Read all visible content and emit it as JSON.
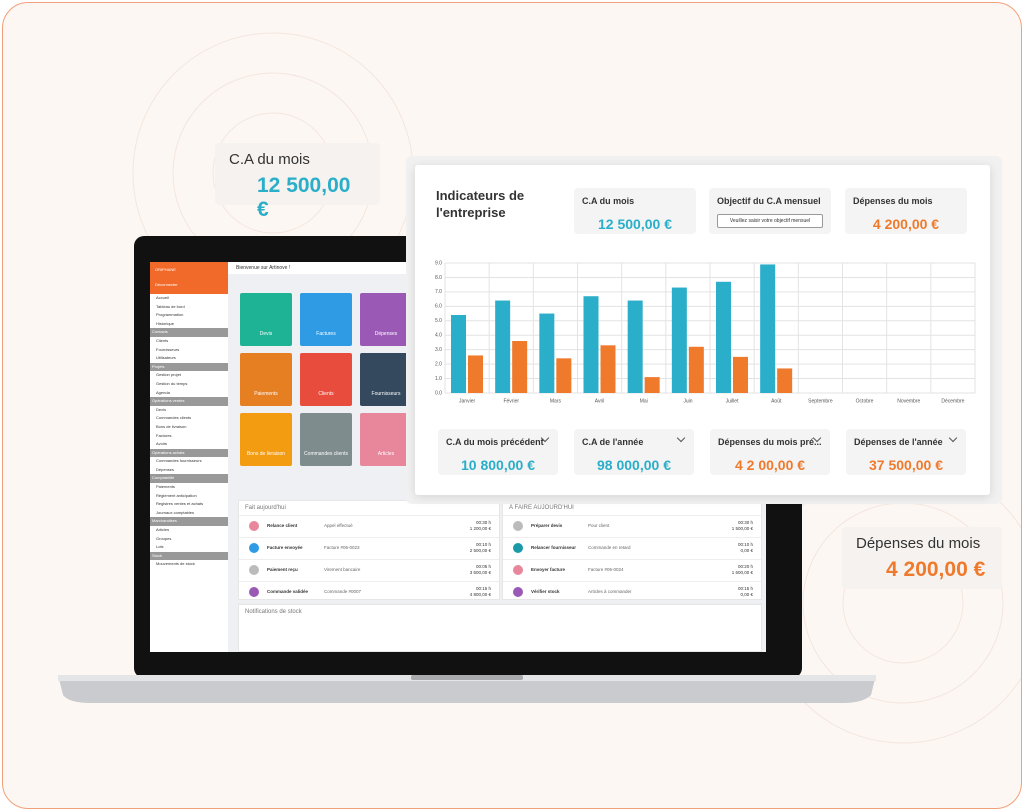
{
  "floating": [
    {
      "label": "C.A du mois",
      "value": "12 500,00 €"
    },
    {
      "label": "Dépenses du mois",
      "value": "4 200,00 €"
    }
  ],
  "dashboard": {
    "title": "Indicateurs de l'entreprise",
    "top": [
      {
        "label": "C.A du mois",
        "value": "12 500,00 €"
      },
      {
        "label": "Objectif du C.A mensuel",
        "input": "Veuillez saisir votre objectif mensuel"
      },
      {
        "label": "Dépenses du mois",
        "value": "4 200,00 €"
      }
    ],
    "bottom": [
      {
        "label": "C.A du mois précédent",
        "value": "10 800,00 €"
      },
      {
        "label": "C.A de l'année",
        "value": "98 000,00 €"
      },
      {
        "label": "Dépenses du mois pré...",
        "value": "4 2 00,00 €"
      },
      {
        "label": "Dépenses de l'année",
        "value": "37 500,00 €"
      }
    ]
  },
  "chart_data": {
    "type": "bar",
    "categories": [
      "Janvier",
      "Février",
      "Mars",
      "Avril",
      "Mai",
      "Juin",
      "Juillet",
      "Août",
      "Septembre",
      "Octobre",
      "Novembre",
      "Décembre"
    ],
    "series": [
      {
        "color": "#2aaec9",
        "values": [
          5.4,
          6.4,
          5.5,
          6.7,
          6.4,
          7.3,
          7.7,
          8.9,
          null,
          null,
          null,
          null
        ]
      },
      {
        "color": "#f07a2c",
        "values": [
          2.6,
          3.6,
          2.4,
          3.3,
          1.1,
          3.2,
          2.5,
          1.7,
          null,
          null,
          null,
          null
        ]
      }
    ],
    "ylim": [
      0,
      9
    ],
    "yticks": [
      {
        "value": 0,
        "label": "0.0"
      },
      {
        "value": 1,
        "label": "1.0"
      },
      {
        "value": 2,
        "label": "2.0"
      },
      {
        "value": 3,
        "label": "3.0"
      },
      {
        "value": 4,
        "label": "4.0"
      },
      {
        "value": 5,
        "label": "5.0"
      },
      {
        "value": 6,
        "label": "6.0"
      },
      {
        "value": 7,
        "label": "7.0"
      },
      {
        "value": 8,
        "label": "8.0"
      },
      {
        "value": 9,
        "label": "9.0"
      }
    ],
    "grid": true
  },
  "app": {
    "brand": "ORIPHANE",
    "menu": "Déconnecter",
    "welcome": "Bienvenue sur Artinove !",
    "sidebar": [
      "Accueil",
      "Tableau de bord",
      "Programmation",
      "Historique",
      "Contacts",
      "Clients",
      "Fournisseurs",
      "Utilisateurs",
      "Projets",
      "Gestion projet",
      "Gestion du temps",
      "Agenda",
      "Opérations ventes",
      "Devis",
      "Commandes clients",
      "Bons de livraison",
      "Factures",
      "Avoirs",
      "Opérations achats",
      "Commandes fournisseurs",
      "Dépenses",
      "Comptabilité",
      "Paiements",
      "Règlement anticipation",
      "Registres ventes et achats",
      "Journaux comptables",
      "Marchandises",
      "Articles",
      "Groupes",
      "Lots",
      "Stock",
      "Mouvements de stock"
    ],
    "tiles": [
      "Devis",
      "Factures",
      "Dépenses",
      "Paiements",
      "Clients",
      "Fournisseurs",
      "Bons de livraison",
      "Commandes clients",
      "Articles"
    ],
    "done": {
      "title": "Fait aujourd'hui",
      "rows": [
        [
          "Relance client",
          "Appel effectué",
          "00:30 h",
          "1 200,00 €"
        ],
        [
          "Facture envoyée",
          "Facture #06-0023",
          "00:10 h",
          "2 500,00 €"
        ],
        [
          "Paiement reçu",
          "Virement bancaire",
          "00:05 h",
          "3 600,00 €"
        ],
        [
          "Commande validée",
          "Commande #0007",
          "00:15 h",
          "4 800,00 €"
        ]
      ]
    },
    "todo": {
      "title": "À FAIRE AUJOURD'HUI",
      "rows": [
        [
          "Préparer devis",
          "Pour client",
          "00:30 h",
          "1 500,00 €"
        ],
        [
          "Relancer fournisseur",
          "Commande en retard",
          "00:10 h",
          "0,00 €"
        ],
        [
          "Envoyer facture",
          "Facture #06-0024",
          "00:20 h",
          "1 600,00 €"
        ],
        [
          "Vérifier stock",
          "Articles à commander",
          "00:15 h",
          "0,00 €"
        ]
      ]
    },
    "notifications": "Notifications de stock"
  }
}
